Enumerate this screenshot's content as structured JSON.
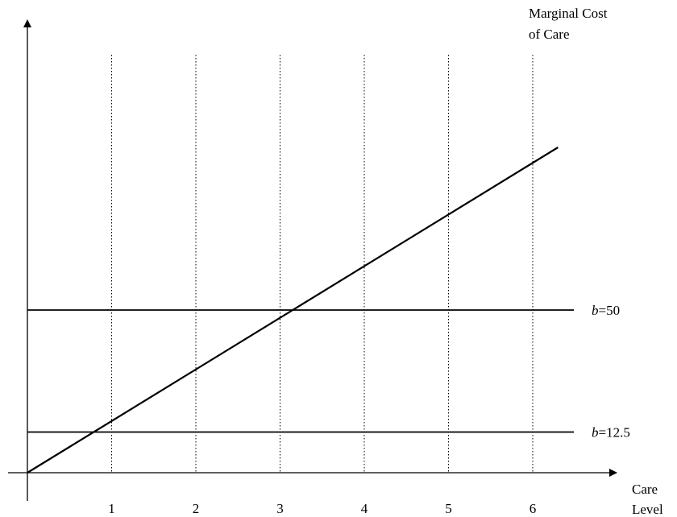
{
  "chart_data": {
    "type": "line",
    "x_axis_label": [
      "Care",
      "Level"
    ],
    "y_axis_label": [
      "Marginal Cost",
      "of Care"
    ],
    "x_ticks": [
      1,
      2,
      3,
      4,
      5,
      6
    ],
    "xlim": [
      0,
      6.5
    ],
    "series": [
      {
        "name": "",
        "type": "line",
        "points": [
          [
            0,
            0
          ],
          [
            6.3,
            100
          ]
        ]
      }
    ],
    "reference_lines": [
      {
        "name": "b=50",
        "label_italic": "b",
        "label_rest": "=50",
        "y_value": 50
      },
      {
        "name": "b=12.5",
        "label_italic": "b",
        "label_rest": "=12.5",
        "y_value": 12.5
      }
    ],
    "vertical_gridlines_at": [
      1,
      2,
      3,
      4,
      5,
      6
    ],
    "grid_style": "dotted vertical"
  }
}
